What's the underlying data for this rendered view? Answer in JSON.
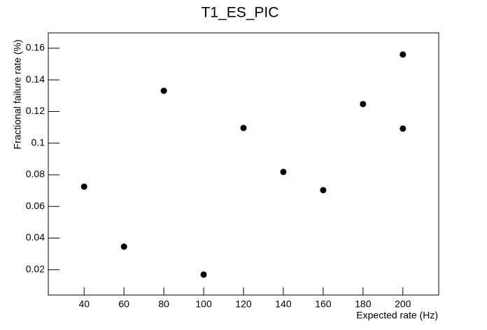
{
  "chart_data": {
    "type": "scatter",
    "title": "T1_ES_PIC",
    "x_label": "Expected rate (Hz)",
    "y_label": "Fractional failure rate (%)",
    "x": [
      40,
      60,
      80,
      100,
      120,
      140,
      160,
      180,
      200,
      200
    ],
    "values": [
      0.0725,
      0.0346,
      0.1331,
      0.0169,
      0.1096,
      0.0818,
      0.0703,
      0.1247,
      0.156,
      0.1092
    ],
    "color": "#000000",
    "xlim": [
      22,
      218
    ],
    "xticks": [
      40,
      60,
      80,
      100,
      120,
      140,
      160,
      180,
      200
    ],
    "ylim": [
      0.004,
      0.1697
    ],
    "yticks": [
      0.02,
      0.04,
      0.06,
      0.08,
      0.1,
      0.12,
      0.14,
      0.16
    ],
    "grid": false
  }
}
